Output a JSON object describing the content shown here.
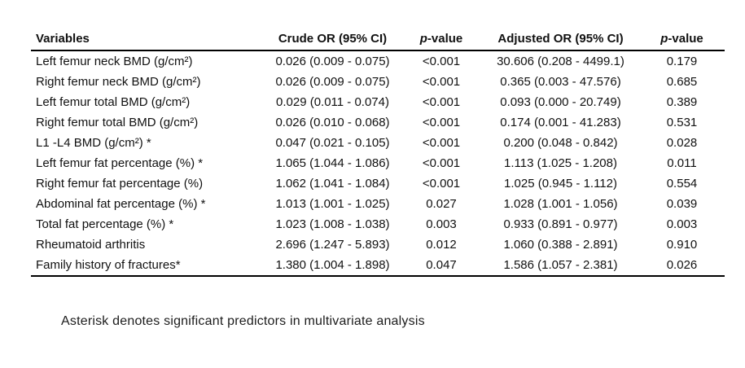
{
  "table": {
    "header": {
      "variables": "Variables",
      "crude_or": "Crude OR (95% CI)",
      "p_value_1": {
        "p": "p",
        "suffix": "-value"
      },
      "adjusted_or": "Adjusted OR (95% CI)",
      "p_value_2": {
        "p": "p",
        "suffix": "-value"
      }
    },
    "rows": [
      {
        "variable": "Left femur neck BMD (g/cm²)",
        "crude_or": "0.026 (0.009 - 0.075)",
        "p1": "<0.001",
        "adjusted_or": "30.606 (0.208 - 4499.1)",
        "p2": "0.179"
      },
      {
        "variable": "Right femur neck BMD (g/cm²)",
        "crude_or": "0.026 (0.009 - 0.075)",
        "p1": "<0.001",
        "adjusted_or": "0.365 (0.003 - 47.576)",
        "p2": "0.685"
      },
      {
        "variable": "Left femur total BMD (g/cm²)",
        "crude_or": "0.029 (0.011 - 0.074)",
        "p1": "<0.001",
        "adjusted_or": "0.093 (0.000 - 20.749)",
        "p2": "0.389"
      },
      {
        "variable": "Right femur total BMD (g/cm²)",
        "crude_or": "0.026 (0.010 - 0.068)",
        "p1": "<0.001",
        "adjusted_or": "0.174 (0.001 - 41.283)",
        "p2": "0.531"
      },
      {
        "variable": "L1 -L4 BMD (g/cm²) *",
        "crude_or": "0.047 (0.021 - 0.105)",
        "p1": "<0.001",
        "adjusted_or": "0.200 (0.048 - 0.842)",
        "p2": "0.028"
      },
      {
        "variable": "Left femur fat percentage (%) *",
        "crude_or": "1.065 (1.044 - 1.086)",
        "p1": "<0.001",
        "adjusted_or": "1.113 (1.025 - 1.208)",
        "p2": "0.011"
      },
      {
        "variable": "Right femur fat percentage (%)",
        "crude_or": "1.062 (1.041 - 1.084)",
        "p1": "<0.001",
        "adjusted_or": "1.025 (0.945 - 1.112)",
        "p2": "0.554"
      },
      {
        "variable": "Abdominal fat percentage (%) *",
        "crude_or": "1.013 (1.001 - 1.025)",
        "p1": "0.027",
        "adjusted_or": "1.028 (1.001 - 1.056)",
        "p2": "0.039"
      },
      {
        "variable": "Total fat percentage (%) *",
        "crude_or": "1.023 (1.008 - 1.038)",
        "p1": "0.003",
        "adjusted_or": "0.933 (0.891 - 0.977)",
        "p2": "0.003"
      },
      {
        "variable": "Rheumatoid arthritis",
        "crude_or": "2.696 (1.247 - 5.893)",
        "p1": "0.012",
        "adjusted_or": "1.060 (0.388 - 2.891)",
        "p2": "0.910"
      },
      {
        "variable": "Family history of fractures*",
        "crude_or": "1.380 (1.004 - 1.898)",
        "p1": "0.047",
        "adjusted_or": "1.586 (1.057 - 2.381)",
        "p2": "0.026"
      }
    ]
  },
  "footnote": "Asterisk denotes significant predictors in multivariate analysis"
}
